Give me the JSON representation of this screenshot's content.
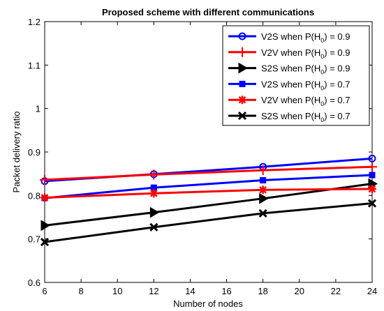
{
  "chart_data": {
    "type": "line",
    "title": "Proposed scheme with different communications",
    "xlabel": "Number of nodes",
    "ylabel": "Packet delivery ratio",
    "xlim": [
      6,
      24
    ],
    "ylim": [
      0.6,
      1.2
    ],
    "x_ticks": [
      "6",
      "8",
      "10",
      "12",
      "14",
      "16",
      "18",
      "20",
      "22",
      "24"
    ],
    "y_ticks": [
      "0.6",
      "0.7",
      "0.8",
      "0.9",
      "1",
      "1.1",
      "1.2"
    ],
    "grid": false,
    "legend_position": "top-right",
    "x": [
      6,
      12,
      18,
      24
    ],
    "series": [
      {
        "name": "V2S when P(H0) = 0.9",
        "legend": {
          "prefix": "V2S when P(H",
          "sub": "0",
          "suffix": ") = 0.9"
        },
        "marker": "circle",
        "color": "#0000ff",
        "values": [
          0.833,
          0.849,
          0.866,
          0.885
        ]
      },
      {
        "name": "V2V when P(H0) = 0.9",
        "legend": {
          "prefix": "V2V when P(H",
          "sub": "0",
          "suffix": ") = 0.9"
        },
        "marker": "plus",
        "color": "#ff0000",
        "values": [
          0.836,
          0.848,
          0.858,
          0.866
        ]
      },
      {
        "name": "S2S when P(H0) = 0.9",
        "legend": {
          "prefix": "S2S when P(H",
          "sub": "0",
          "suffix": ") = 0.9"
        },
        "marker": "triangle-right",
        "color": "#000000",
        "values": [
          0.731,
          0.761,
          0.793,
          0.827
        ]
      },
      {
        "name": "V2S when P(H0) = 0.7",
        "legend": {
          "prefix": "V2S when P(H",
          "sub": "0",
          "suffix": ") = 0.7"
        },
        "marker": "square",
        "color": "#0000ff",
        "values": [
          0.794,
          0.818,
          0.835,
          0.847
        ]
      },
      {
        "name": "V2V when P(H0) = 0.7",
        "legend": {
          "prefix": "V2V when P(H",
          "sub": "0",
          "suffix": ") = 0.7"
        },
        "marker": "asterisk",
        "color": "#ff0000",
        "values": [
          0.795,
          0.805,
          0.813,
          0.815
        ]
      },
      {
        "name": "S2S when P(H0) = 0.7",
        "legend": {
          "prefix": "S2S when P(H",
          "sub": "0",
          "suffix": ") = 0.7"
        },
        "marker": "x",
        "color": "#000000",
        "values": [
          0.693,
          0.727,
          0.759,
          0.782
        ]
      }
    ]
  }
}
